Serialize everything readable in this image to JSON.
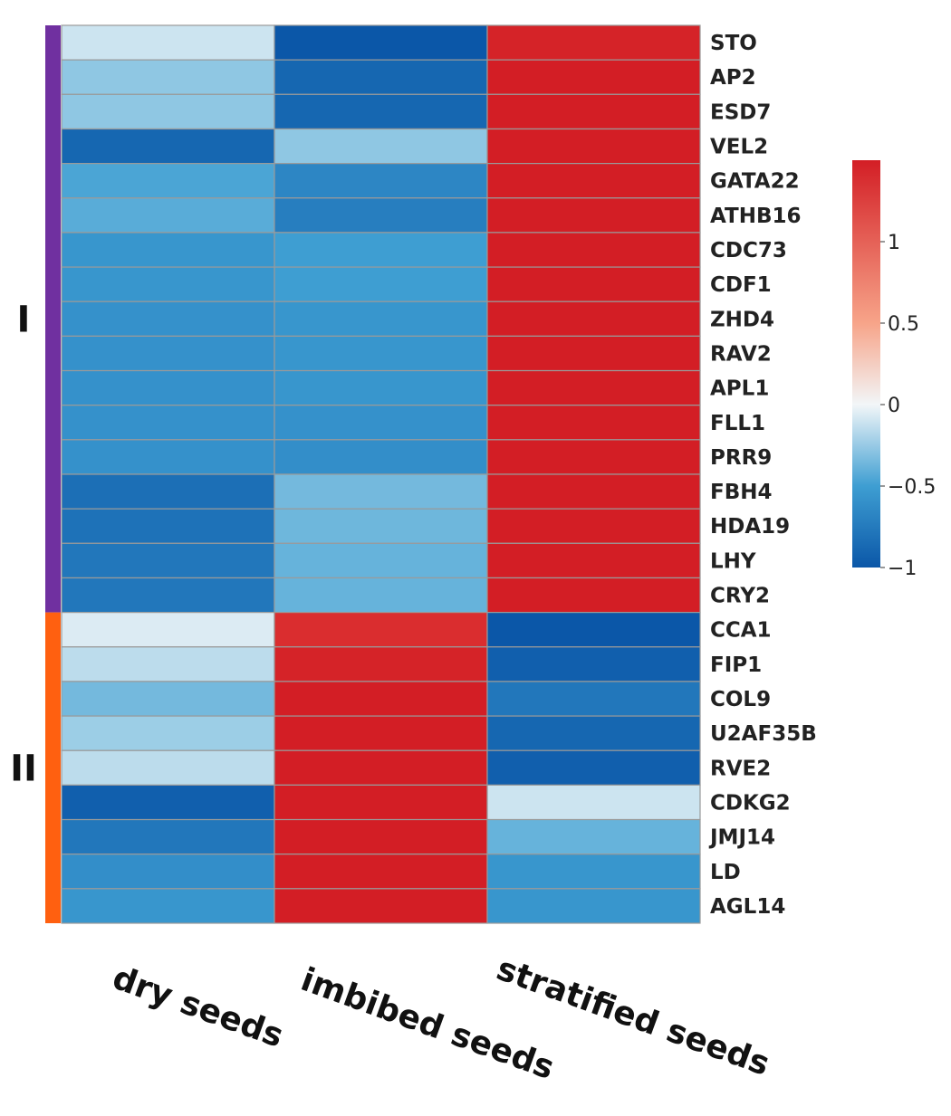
{
  "chart_data": {
    "type": "heatmap",
    "title": "",
    "columns": [
      "dry seeds",
      "imbibed seeds",
      "stratified seeds"
    ],
    "rows": [
      "STO",
      "AP2",
      "ESD7",
      "VEL2",
      "GATA22",
      "ATHB16",
      "CDC73",
      "CDF1",
      "ZHD4",
      "RAV2",
      "APL1",
      "FLL1",
      "PRR9",
      "FBH4",
      "HDA19",
      "LHY",
      "CRY2",
      "CCA1",
      "FIP1",
      "COL9",
      "U2AF35B",
      "RVE2",
      "CDKG2",
      "JMJ14",
      "LD",
      "AGL14"
    ],
    "values": [
      [
        -0.1,
        -1.05,
        1.25
      ],
      [
        -0.3,
        -0.95,
        1.3
      ],
      [
        -0.3,
        -0.95,
        1.3
      ],
      [
        -0.95,
        -0.3,
        1.3
      ],
      [
        -0.55,
        -0.75,
        1.3
      ],
      [
        -0.5,
        -0.8,
        1.3
      ],
      [
        -0.65,
        -0.6,
        1.3
      ],
      [
        -0.65,
        -0.6,
        1.3
      ],
      [
        -0.68,
        -0.65,
        1.3
      ],
      [
        -0.68,
        -0.65,
        1.3
      ],
      [
        -0.68,
        -0.65,
        1.3
      ],
      [
        -0.68,
        -0.68,
        1.3
      ],
      [
        -0.68,
        -0.7,
        1.3
      ],
      [
        -0.9,
        -0.4,
        1.3
      ],
      [
        -0.88,
        -0.42,
        1.3
      ],
      [
        -0.85,
        -0.45,
        1.3
      ],
      [
        -0.85,
        -0.45,
        1.3
      ],
      [
        -0.05,
        1.15,
        -1.05
      ],
      [
        -0.15,
        1.25,
        -1.0
      ],
      [
        -0.4,
        1.3,
        -0.85
      ],
      [
        -0.25,
        1.3,
        -0.95
      ],
      [
        -0.15,
        1.3,
        -1.0
      ],
      [
        -1.0,
        1.3,
        -0.1
      ],
      [
        -0.85,
        1.3,
        -0.45
      ],
      [
        -0.7,
        1.3,
        -0.65
      ],
      [
        -0.65,
        1.3,
        -0.65
      ]
    ],
    "clusters": [
      {
        "label": "I",
        "start": 0,
        "end": 16,
        "color": "#7030A0"
      },
      {
        "label": "II",
        "start": 17,
        "end": 25,
        "color": "#FF6010"
      }
    ],
    "colorbar": {
      "range": [
        -1,
        1.5
      ],
      "ticks": [
        1,
        0.5,
        0,
        -0.5,
        -1
      ],
      "tick_labels": [
        "1",
        "0.5",
        "0",
        "−0.5",
        "−1"
      ],
      "colors": [
        "#0B57A8",
        "#FFFFFF",
        "#D31E25"
      ]
    }
  }
}
